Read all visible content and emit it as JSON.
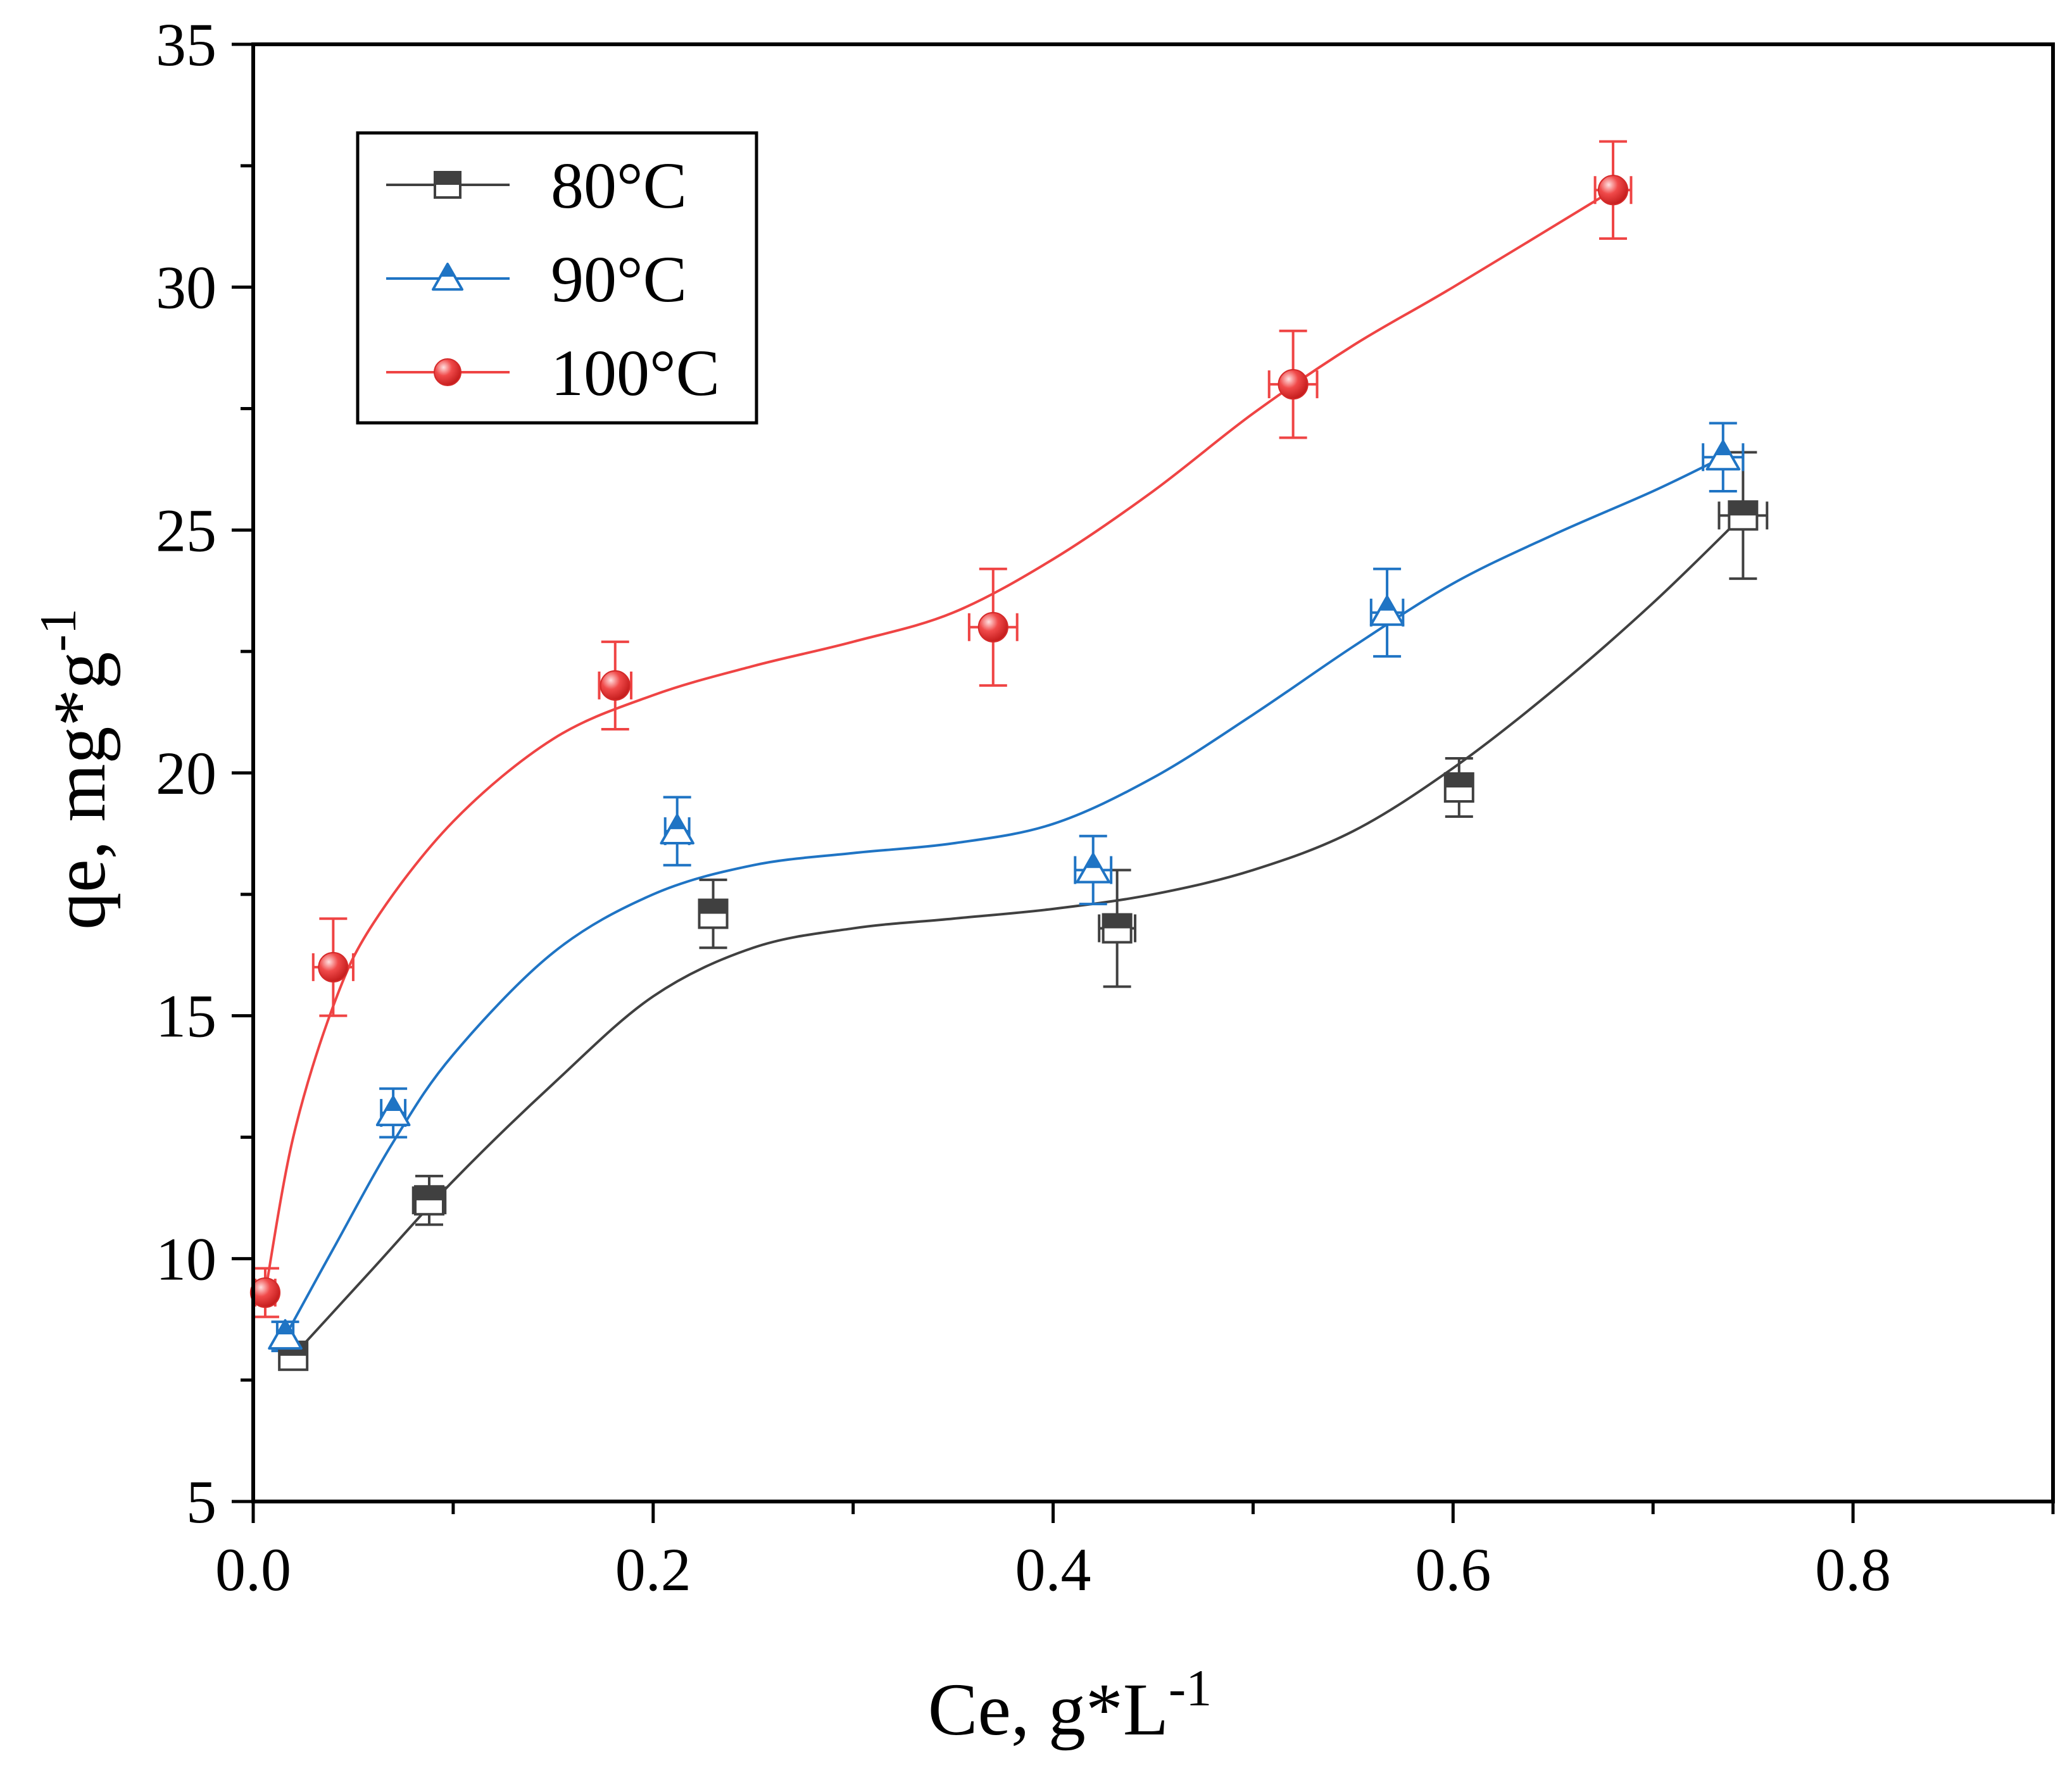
{
  "chart_data": {
    "type": "scatter",
    "title": "",
    "xlabel": "Ce, g*L",
    "xlabel_sup": "-1",
    "ylabel": "qe, mg*g",
    "ylabel_sup": "-1",
    "xlim": [
      0.0,
      0.9
    ],
    "ylim": [
      5,
      35
    ],
    "xticks": [
      0.0,
      0.2,
      0.4,
      0.6,
      0.8
    ],
    "xtick_labels": [
      "0.0",
      "0.2",
      "0.4",
      "0.6",
      "0.8"
    ],
    "yticks": [
      5,
      10,
      15,
      20,
      25,
      30,
      35
    ],
    "ytick_labels": [
      "5",
      "10",
      "15",
      "20",
      "25",
      "30",
      "35"
    ],
    "grid": false,
    "legend_position": "top-left",
    "series": [
      {
        "name": "80°C",
        "color": "#404040",
        "marker": "half-filled-square",
        "x": [
          0.02,
          0.088,
          0.23,
          0.432,
          0.603,
          0.745
        ],
        "y": [
          8.0,
          11.2,
          17.1,
          16.8,
          19.7,
          25.3
        ],
        "x_err": [
          0.004,
          0.008,
          0.004,
          0.009,
          0.004,
          0.012
        ],
        "y_err": [
          0.2,
          0.5,
          0.7,
          1.2,
          0.6,
          1.3
        ],
        "fit": [
          [
            0.02,
            8.0
          ],
          [
            0.06,
            9.8
          ],
          [
            0.1,
            11.6
          ],
          [
            0.15,
            13.6
          ],
          [
            0.2,
            15.4
          ],
          [
            0.25,
            16.4
          ],
          [
            0.3,
            16.8
          ],
          [
            0.35,
            17.0
          ],
          [
            0.4,
            17.2
          ],
          [
            0.45,
            17.5
          ],
          [
            0.5,
            18.0
          ],
          [
            0.55,
            18.8
          ],
          [
            0.6,
            20.1
          ],
          [
            0.65,
            21.7
          ],
          [
            0.7,
            23.5
          ],
          [
            0.745,
            25.3
          ]
        ]
      },
      {
        "name": "90°C",
        "color": "#1f74c4",
        "marker": "half-filled-triangle",
        "x": [
          0.016,
          0.07,
          0.212,
          0.42,
          0.567,
          0.735
        ],
        "y": [
          8.4,
          13.0,
          18.8,
          18.0,
          23.3,
          26.5
        ],
        "x_err": [
          0.004,
          0.006,
          0.006,
          0.009,
          0.008,
          0.01
        ],
        "y_err": [
          0.3,
          0.5,
          0.7,
          0.7,
          0.9,
          0.7
        ],
        "fit": [
          [
            0.016,
            8.4
          ],
          [
            0.04,
            10.2
          ],
          [
            0.07,
            12.4
          ],
          [
            0.1,
            14.2
          ],
          [
            0.15,
            16.3
          ],
          [
            0.2,
            17.5
          ],
          [
            0.25,
            18.1
          ],
          [
            0.3,
            18.35
          ],
          [
            0.35,
            18.55
          ],
          [
            0.4,
            18.95
          ],
          [
            0.45,
            19.9
          ],
          [
            0.5,
            21.2
          ],
          [
            0.55,
            22.6
          ],
          [
            0.6,
            23.9
          ],
          [
            0.65,
            24.9
          ],
          [
            0.7,
            25.8
          ],
          [
            0.735,
            26.5
          ]
        ]
      },
      {
        "name": "100°C",
        "color": "#ef4444",
        "marker": "circle",
        "x": [
          0.006,
          0.04,
          0.181,
          0.37,
          0.52,
          0.68
        ],
        "y": [
          9.3,
          16.0,
          21.8,
          23.0,
          28.0,
          32.0
        ],
        "x_err": [
          0.005,
          0.01,
          0.008,
          0.012,
          0.012,
          0.009
        ],
        "y_err": [
          0.5,
          1.0,
          0.9,
          1.2,
          1.1,
          1.0
        ],
        "fit": [
          [
            0.006,
            9.3
          ],
          [
            0.02,
            12.5
          ],
          [
            0.04,
            15.2
          ],
          [
            0.06,
            16.9
          ],
          [
            0.1,
            19.0
          ],
          [
            0.15,
            20.7
          ],
          [
            0.2,
            21.6
          ],
          [
            0.25,
            22.2
          ],
          [
            0.3,
            22.7
          ],
          [
            0.35,
            23.3
          ],
          [
            0.4,
            24.4
          ],
          [
            0.45,
            25.8
          ],
          [
            0.5,
            27.4
          ],
          [
            0.55,
            28.8
          ],
          [
            0.6,
            30.0
          ],
          [
            0.68,
            32.0
          ]
        ]
      }
    ]
  }
}
